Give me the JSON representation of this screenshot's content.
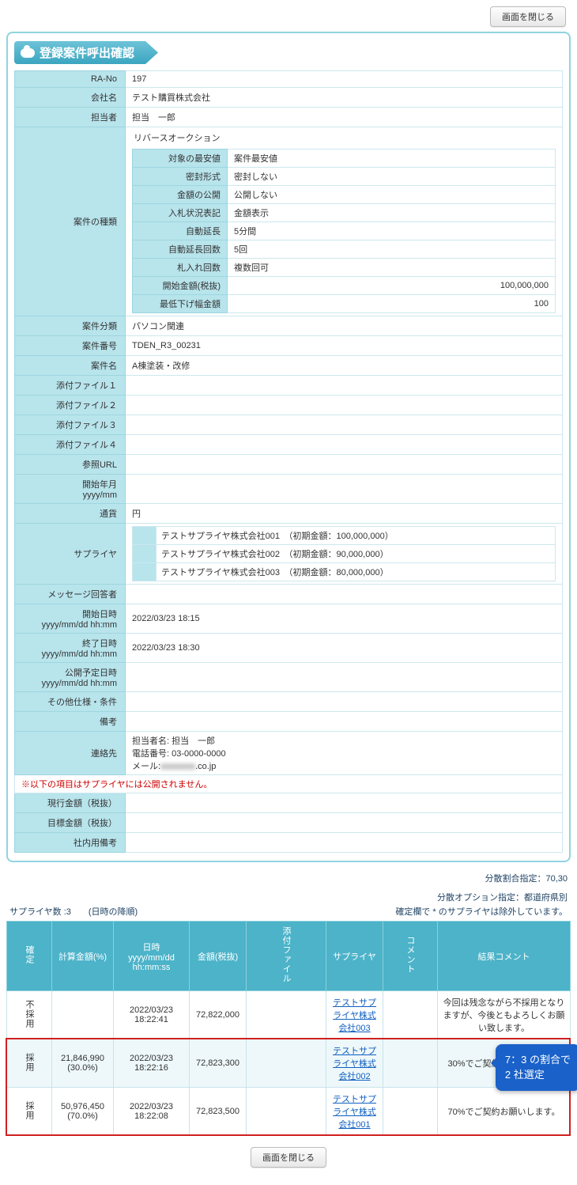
{
  "buttons": {
    "close": "画面を閉じる"
  },
  "title": "登録案件呼出確認",
  "fields": {
    "ra_no": {
      "label": "RA-No",
      "value": "197"
    },
    "company": {
      "label": "会社名",
      "value": "テスト購買株式会社"
    },
    "person": {
      "label": "担当者",
      "value": "担当　一郎"
    },
    "case_type_label": "案件の種類",
    "case_type_title": "リバースオークション",
    "case_type_rows": [
      {
        "k": "対象の最安値",
        "v": "案件最安値"
      },
      {
        "k": "密封形式",
        "v": "密封しない"
      },
      {
        "k": "金額の公開",
        "v": "公開しない"
      },
      {
        "k": "入札状況表記",
        "v": "金額表示"
      },
      {
        "k": "自動延長",
        "v": "5分間"
      },
      {
        "k": "自動延長回数",
        "v": "5回"
      },
      {
        "k": "札入れ回数",
        "v": "複数回可"
      },
      {
        "k": "開始金額(税抜)",
        "v": "100,000,000",
        "right": true
      },
      {
        "k": "最低下げ幅金額",
        "v": "100",
        "right": true
      }
    ],
    "category": {
      "label": "案件分類",
      "value": "パソコン関連"
    },
    "case_no": {
      "label": "案件番号",
      "value": "TDEN_R3_00231"
    },
    "case_name": {
      "label": "案件名",
      "value": "A棟塗装・改修"
    },
    "file1": {
      "label": "添付ファイル１",
      "value": ""
    },
    "file2": {
      "label": "添付ファイル２",
      "value": ""
    },
    "file3": {
      "label": "添付ファイル３",
      "value": ""
    },
    "file4": {
      "label": "添付ファイル４",
      "value": ""
    },
    "ref_url": {
      "label": "参照URL",
      "value": ""
    },
    "start_ym": {
      "label": "開始年月\nyyyy/mm",
      "value": ""
    },
    "currency": {
      "label": "通貨",
      "value": "円"
    },
    "supplier_label": "サプライヤ",
    "suppliers": [
      "テストサプライヤ株式会社001　（初期金額：100,000,000）",
      "テストサプライヤ株式会社002　（初期金額：90,000,000）",
      "テストサプライヤ株式会社003　（初期金額：80,000,000）"
    ],
    "msg_responder": {
      "label": "メッセージ回答者",
      "value": ""
    },
    "start_dt": {
      "label": "開始日時\nyyyy/mm/dd hh:mm",
      "value": "2022/03/23 18:15"
    },
    "end_dt": {
      "label": "終了日時\nyyyy/mm/dd hh:mm",
      "value": "2022/03/23 18:30"
    },
    "pub_dt": {
      "label": "公開予定日時\nyyyy/mm/dd hh:mm",
      "value": ""
    },
    "spec": {
      "label": "その他仕様・条件",
      "value": ""
    },
    "remarks": {
      "label": "備考",
      "value": ""
    },
    "contact": {
      "label": "連絡先",
      "line1": "担当者名: 担当　一郎",
      "line2": "電話番号: 03-0000-0000",
      "line3_pre": "メール:",
      "line3_blur": "xxxxxxxx",
      "line3_post": ".co.jp"
    },
    "warning": "※以下の項目はサプライヤには公開されません。",
    "current_amt": {
      "label": "現行金額（税抜）",
      "value": ""
    },
    "target_amt": {
      "label": "目標金額（税抜）",
      "value": ""
    },
    "internal": {
      "label": "社内用備考",
      "value": ""
    }
  },
  "summary": {
    "ratio": "分散割合指定：70,30",
    "option": "分散オプション指定：都道府県別"
  },
  "list_header": {
    "left": "サプライヤ数 :3　　(日時の降順)",
    "right": "確定欄で * のサプライヤは除外しています。"
  },
  "result_cols": [
    "確定",
    "計算金額(%)",
    "日時\nyyyy/mm/dd\nhh:mm:ss",
    "金額(税抜)",
    "添付ファイル",
    "サプライヤ",
    "コメント",
    "結果コメント"
  ],
  "result_col_widths": [
    "28px",
    "78px",
    "96px",
    "72px",
    "24px",
    "72px",
    "24px",
    "auto"
  ],
  "results": [
    {
      "status": "不採用",
      "calc": "",
      "dt": "2022/03/23 18:22:41",
      "amount": "72,822,000",
      "file": "",
      "supplier": "テストサプライヤ株式会社003",
      "cmt": "",
      "result": "今回は残念ながら不採用となりますが、今後ともよろしくお願い致します。",
      "highlight": false
    },
    {
      "status": "採用",
      "calc": "21,846,990\n(30.0%)",
      "dt": "2022/03/23 18:22:16",
      "amount": "72,823,300",
      "file": "",
      "supplier": "テストサプライヤ株式会社002",
      "cmt": "",
      "result": "30%でご契約お願いします。",
      "highlight": true
    },
    {
      "status": "採用",
      "calc": "50,976,450\n(70.0%)",
      "dt": "2022/03/23 18:22:08",
      "amount": "72,823,500",
      "file": "",
      "supplier": "テストサプライヤ株式会社001",
      "cmt": "",
      "result": "70%でご契約お願いします。",
      "highlight": true
    }
  ],
  "callout": "7：3 の割合で\n2 社選定"
}
